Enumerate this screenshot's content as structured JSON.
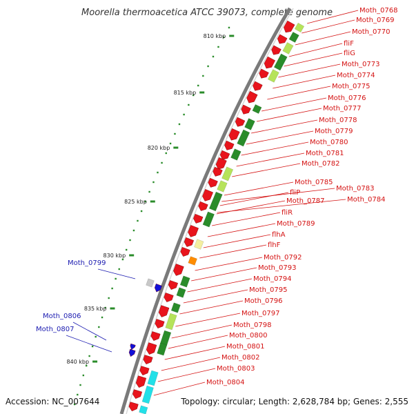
{
  "title": "Moorella thermoacetica ATCC 39073, complete genome",
  "footer": {
    "accession": "Accession: NC_007644",
    "topology": "Topology: circular; Length: 2,628,784 bp; Genes: 2,555"
  },
  "kbp_labels": [
    "810 kbp",
    "815 kbp",
    "820 kbp",
    "825 kbp",
    "830 kbp",
    "835 kbp",
    "840 kbp"
  ],
  "colors": {
    "forward_cds": "#e8141c",
    "rrna_green": "#2a8c2a",
    "light_green": "#b6e35a",
    "orange": "#ff8c00",
    "cyan": "#22e0e8",
    "blue_gene": "#1010d8",
    "red_label": "#d41010",
    "blue_label": "#1a1ab0",
    "backbone": "#7a7a7a"
  },
  "right_labels": [
    "Moth_0768",
    "Moth_0769",
    "Moth_0770",
    "fliF",
    "fliG",
    "Moth_0773",
    "Moth_0774",
    "Moth_0775",
    "Moth_0776",
    "Moth_0777",
    "Moth_0778",
    "Moth_0779",
    "Moth_0780",
    "Moth_0781",
    "Moth_0782",
    "Moth_0785",
    "Moth_0783",
    "fliP",
    "Moth_0784",
    "Moth_0787",
    "fliR",
    "Moth_0789",
    "flhA",
    "flhF",
    "Moth_0792",
    "Moth_0793",
    "Moth_0794",
    "Moth_0795",
    "Moth_0796",
    "Moth_0797",
    "Moth_0798",
    "Moth_0800",
    "Moth_0801",
    "Moth_0802",
    "Moth_0803",
    "Moth_0804"
  ],
  "left_labels": [
    "Moth_0799",
    "Moth_0806",
    "Moth_0807"
  ]
}
